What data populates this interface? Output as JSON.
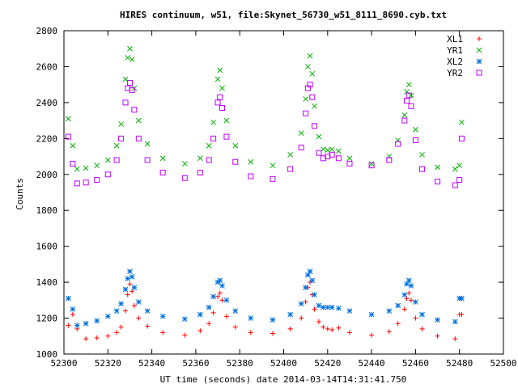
{
  "chart_data": {
    "type": "scatter",
    "title": "HIRES continuum, w51, file:Skynet_56730_w51_8111_8690.cyb.txt",
    "xlabel": "UT time (seconds) date 2014-03-14T14:31:41.750",
    "ylabel": "Counts",
    "xlim": [
      52300,
      52500
    ],
    "ylim": [
      1000,
      2800
    ],
    "x_ticks": [
      52300,
      52320,
      52340,
      52360,
      52380,
      52400,
      52420,
      52440,
      52460,
      52480,
      52500
    ],
    "y_ticks": [
      1000,
      1200,
      1400,
      1600,
      1800,
      2000,
      2200,
      2400,
      2600,
      2800
    ],
    "grid": false,
    "legend_position": "top-right",
    "series": [
      {
        "name": "XL1",
        "color": "#ff0000",
        "marker": "plus",
        "x": [
          52302,
          52304,
          52306,
          52310,
          52315,
          52320,
          52324,
          52326,
          52328,
          52329,
          52330,
          52331,
          52332,
          52334,
          52338,
          52345,
          52355,
          52362,
          52366,
          52368,
          52370,
          52371,
          52372,
          52374,
          52378,
          52385,
          52395,
          52403,
          52408,
          52410,
          52411,
          52412,
          52413,
          52414,
          52416,
          52418,
          52420,
          52422,
          52425,
          52430,
          52440,
          52448,
          52452,
          52455,
          52456,
          52457,
          52458,
          52460,
          52463,
          52470,
          52478,
          52480,
          52481
        ],
        "y": [
          1160,
          1220,
          1140,
          1085,
          1090,
          1100,
          1120,
          1150,
          1240,
          1330,
          1390,
          1350,
          1270,
          1200,
          1155,
          1120,
          1105,
          1130,
          1170,
          1230,
          1320,
          1340,
          1300,
          1210,
          1150,
          1120,
          1115,
          1140,
          1200,
          1290,
          1370,
          1400,
          1330,
          1250,
          1180,
          1150,
          1140,
          1135,
          1145,
          1120,
          1105,
          1125,
          1170,
          1250,
          1310,
          1340,
          1300,
          1200,
          1140,
          1100,
          1085,
          1220,
          1220
        ]
      },
      {
        "name": "YR1",
        "color": "#00b000",
        "marker": "cross",
        "x": [
          52302,
          52304,
          52306,
          52310,
          52315,
          52320,
          52324,
          52326,
          52328,
          52329,
          52330,
          52331,
          52332,
          52334,
          52338,
          52345,
          52355,
          52362,
          52366,
          52368,
          52370,
          52371,
          52372,
          52374,
          52378,
          52385,
          52395,
          52403,
          52408,
          52410,
          52411,
          52412,
          52413,
          52414,
          52416,
          52418,
          52420,
          52422,
          52425,
          52430,
          52440,
          52448,
          52452,
          52455,
          52456,
          52457,
          52458,
          52460,
          52463,
          52470,
          52478,
          52480,
          52481
        ],
        "y": [
          2310,
          2160,
          2030,
          2035,
          2050,
          2080,
          2160,
          2280,
          2530,
          2650,
          2700,
          2640,
          2480,
          2300,
          2170,
          2090,
          2060,
          2090,
          2160,
          2290,
          2530,
          2580,
          2480,
          2300,
          2160,
          2070,
          2050,
          2110,
          2230,
          2420,
          2600,
          2660,
          2560,
          2380,
          2210,
          2140,
          2135,
          2140,
          2130,
          2090,
          2060,
          2100,
          2190,
          2330,
          2460,
          2500,
          2440,
          2250,
          2110,
          2040,
          2030,
          2050,
          2290
        ]
      },
      {
        "name": "XL2",
        "color": "#0070e0",
        "marker": "star",
        "x": [
          52302,
          52304,
          52306,
          52310,
          52315,
          52320,
          52324,
          52326,
          52328,
          52329,
          52330,
          52331,
          52332,
          52334,
          52338,
          52345,
          52355,
          52362,
          52366,
          52368,
          52370,
          52371,
          52372,
          52374,
          52378,
          52385,
          52395,
          52403,
          52408,
          52410,
          52411,
          52412,
          52413,
          52414,
          52416,
          52418,
          52420,
          52422,
          52425,
          52430,
          52440,
          52448,
          52452,
          52455,
          52456,
          52457,
          52458,
          52460,
          52463,
          52470,
          52478,
          52480,
          52481
        ],
        "y": [
          1310,
          1250,
          1160,
          1170,
          1185,
          1210,
          1240,
          1280,
          1360,
          1420,
          1460,
          1430,
          1370,
          1290,
          1240,
          1210,
          1195,
          1220,
          1260,
          1320,
          1400,
          1410,
          1380,
          1300,
          1240,
          1200,
          1190,
          1220,
          1280,
          1370,
          1440,
          1460,
          1410,
          1330,
          1270,
          1260,
          1260,
          1260,
          1255,
          1240,
          1220,
          1240,
          1270,
          1330,
          1390,
          1410,
          1380,
          1290,
          1220,
          1190,
          1180,
          1310,
          1310
        ]
      },
      {
        "name": "YR2",
        "color": "#c000ff",
        "marker": "square",
        "x": [
          52302,
          52304,
          52306,
          52310,
          52315,
          52320,
          52324,
          52326,
          52328,
          52329,
          52330,
          52331,
          52332,
          52334,
          52338,
          52345,
          52355,
          52362,
          52366,
          52368,
          52370,
          52371,
          52372,
          52374,
          52378,
          52385,
          52395,
          52403,
          52408,
          52410,
          52411,
          52412,
          52413,
          52414,
          52416,
          52418,
          52420,
          52422,
          52425,
          52430,
          52440,
          52448,
          52452,
          52455,
          52456,
          52457,
          52458,
          52460,
          52463,
          52470,
          52478,
          52480,
          52481
        ],
        "y": [
          2210,
          2060,
          1950,
          1955,
          1970,
          2000,
          2080,
          2200,
          2400,
          2480,
          2510,
          2470,
          2360,
          2200,
          2080,
          2010,
          1980,
          2010,
          2080,
          2200,
          2400,
          2430,
          2370,
          2210,
          2070,
          1990,
          1975,
          2030,
          2150,
          2340,
          2480,
          2500,
          2430,
          2270,
          2120,
          2090,
          2100,
          2110,
          2090,
          2060,
          2050,
          2080,
          2170,
          2300,
          2410,
          2440,
          2380,
          2190,
          2030,
          1960,
          1940,
          1970,
          2200
        ]
      }
    ]
  }
}
